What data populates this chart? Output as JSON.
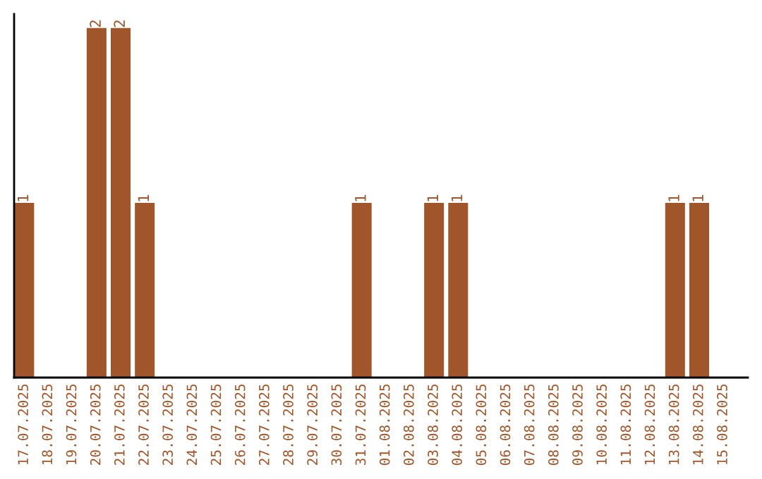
{
  "chart_data": {
    "type": "bar",
    "categories": [
      "17.07.2025",
      "18.07.2025",
      "19.07.2025",
      "20.07.2025",
      "21.07.2025",
      "22.07.2025",
      "23.07.2025",
      "24.07.2025",
      "25.07.2025",
      "26.07.2025",
      "27.07.2025",
      "28.07.2025",
      "29.07.2025",
      "30.07.2025",
      "31.07.2025",
      "01.08.2025",
      "02.08.2025",
      "03.08.2025",
      "04.08.2025",
      "05.08.2025",
      "06.08.2025",
      "07.08.2025",
      "08.08.2025",
      "09.08.2025",
      "10.08.2025",
      "11.08.2025",
      "12.08.2025",
      "13.08.2025",
      "14.08.2025",
      "15.08.2025"
    ],
    "values": [
      1,
      0,
      0,
      2,
      2,
      1,
      0,
      0,
      0,
      0,
      0,
      0,
      0,
      0,
      1,
      0,
      0,
      1,
      1,
      0,
      0,
      0,
      0,
      0,
      0,
      0,
      0,
      1,
      1,
      0
    ],
    "value_labels": [
      "1",
      null,
      null,
      "2",
      "2",
      "1",
      null,
      null,
      null,
      null,
      null,
      null,
      null,
      null,
      "1",
      null,
      null,
      "1",
      "1",
      null,
      null,
      null,
      null,
      null,
      null,
      null,
      null,
      "1",
      "1",
      null
    ],
    "color": "#a0552a",
    "ylim": [
      0,
      2.08
    ],
    "tick_labels": "x",
    "grid": false,
    "legend": false
  }
}
